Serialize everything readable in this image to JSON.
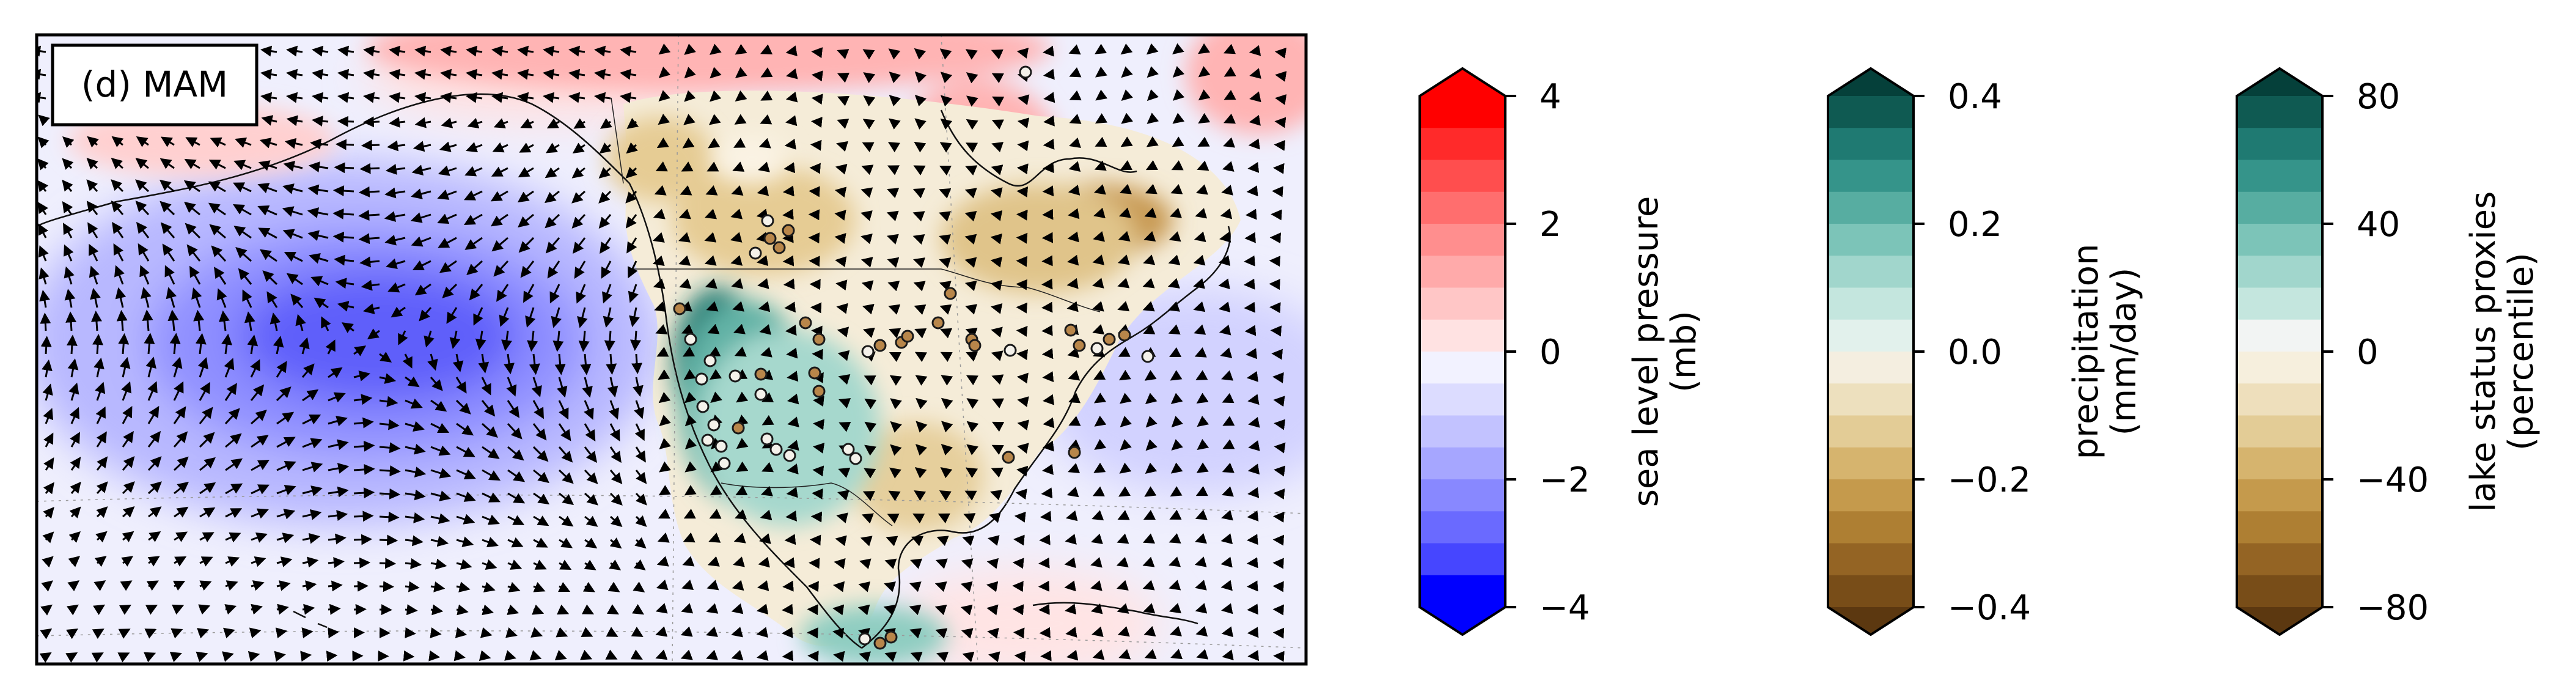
{
  "panel_label": "(d) MAM",
  "colorbars": [
    {
      "id": "slp",
      "label_line1": "sea level pressure",
      "label_line2": "(mb)",
      "ticks": [
        "4",
        "2",
        "0",
        "−2",
        "−4"
      ],
      "colors": [
        "#ff0000",
        "#ff2a2a",
        "#ff4e4e",
        "#ff6e6e",
        "#ff8e8e",
        "#ffaaaa",
        "#ffc6c6",
        "#ffe2e2",
        "#f2f2ff",
        "#dcdcff",
        "#c2c2ff",
        "#a6a6ff",
        "#8888ff",
        "#6a6aff",
        "#4646ff",
        "#0000ff"
      ]
    },
    {
      "id": "precip",
      "label_line1": "precipitation",
      "label_line2": "(mm/day)",
      "ticks": [
        "0.4",
        "0.2",
        "0.0",
        "−0.2",
        "−0.4"
      ],
      "colors": [
        "#0f5a52",
        "#1f7a72",
        "#35948a",
        "#57ada1",
        "#7cc4b8",
        "#a1d6cc",
        "#c4e6de",
        "#e2f1ec",
        "#f4eee0",
        "#ede0be",
        "#e3cc96",
        "#d6b46e",
        "#c59a4c",
        "#ae7f33",
        "#946424",
        "#784d18"
      ]
    },
    {
      "id": "lake",
      "label_line1": "lake status proxies",
      "label_line2": "(percentile)",
      "ticks": [
        "80",
        "40",
        "0",
        "−40",
        "−80"
      ],
      "colors": [
        "#0f5a52",
        "#1f7a72",
        "#35948a",
        "#57ada1",
        "#7cc4b8",
        "#a1d6cc",
        "#c4e6de",
        "#f2f4f3",
        "#f6efdd",
        "#eedfbc",
        "#e3cc96",
        "#d6b46e",
        "#c59a4c",
        "#ae7f33",
        "#946424",
        "#784d18"
      ]
    }
  ],
  "colors": {
    "ocean_base": "#efeffd",
    "low_pressure_core": "#3c3cf5",
    "wet_site": "#f4f1ea",
    "dry_site": "#b8864a"
  }
}
